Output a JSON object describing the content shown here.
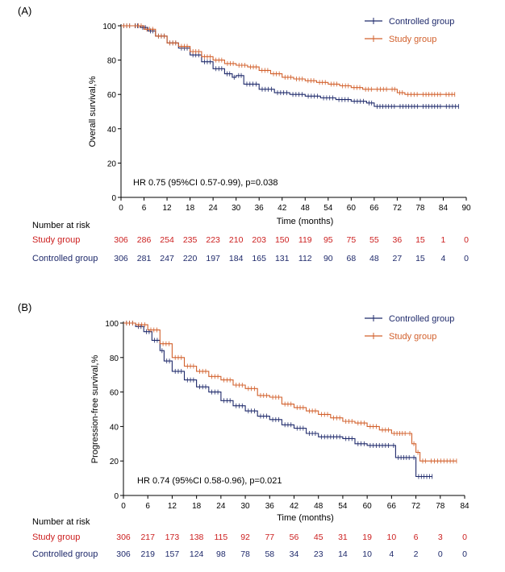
{
  "colors": {
    "controlled": "#1f2a6b",
    "study": "#d2602c",
    "axis": "#000000",
    "risk_controlled": "#1f2a6b",
    "risk_study": "#cc1f1f"
  },
  "chart_data": [
    {
      "type": "line",
      "panel_label": "(A)",
      "xlabel": "Time (months)",
      "ylabel": "Overall survival,%",
      "xlim": [
        0,
        90
      ],
      "ylim": [
        0,
        100
      ],
      "x_ticks": [
        0,
        6,
        12,
        18,
        24,
        30,
        36,
        42,
        48,
        54,
        60,
        66,
        72,
        78,
        84,
        90
      ],
      "y_ticks": [
        0,
        20,
        40,
        60,
        80,
        100
      ],
      "legend": {
        "position": "top-right",
        "entries": [
          "Controlled group",
          "Study group"
        ]
      },
      "annotation": "HR 0.75 (95%CI 0.57-0.99), p=0.038",
      "series": [
        {
          "name": "Controlled group",
          "color_key": "controlled",
          "points": [
            [
              0,
              100
            ],
            [
              3,
              100
            ],
            [
              5,
              99
            ],
            [
              7,
              97
            ],
            [
              9,
              94
            ],
            [
              12,
              90
            ],
            [
              15,
              87
            ],
            [
              18,
              83
            ],
            [
              21,
              79
            ],
            [
              24,
              75
            ],
            [
              27,
              72
            ],
            [
              29,
              70
            ],
            [
              30,
              71
            ],
            [
              32,
              66
            ],
            [
              36,
              63
            ],
            [
              40,
              61
            ],
            [
              44,
              60
            ],
            [
              48,
              59
            ],
            [
              52,
              58
            ],
            [
              56,
              57
            ],
            [
              60,
              56
            ],
            [
              64,
              55
            ],
            [
              66,
              53
            ],
            [
              72,
              53
            ],
            [
              78,
              53
            ],
            [
              84,
              53
            ],
            [
              88,
              53
            ]
          ]
        },
        {
          "name": "Study group",
          "color_key": "study",
          "points": [
            [
              0,
              100
            ],
            [
              3,
              100
            ],
            [
              6,
              98
            ],
            [
              9,
              94
            ],
            [
              12,
              90
            ],
            [
              15,
              88
            ],
            [
              18,
              85
            ],
            [
              21,
              82
            ],
            [
              24,
              80
            ],
            [
              27,
              78
            ],
            [
              30,
              77
            ],
            [
              33,
              76
            ],
            [
              36,
              74
            ],
            [
              39,
              72
            ],
            [
              42,
              70
            ],
            [
              45,
              69
            ],
            [
              48,
              68
            ],
            [
              51,
              67
            ],
            [
              54,
              66
            ],
            [
              57,
              65
            ],
            [
              60,
              64
            ],
            [
              63,
              63
            ],
            [
              66,
              63
            ],
            [
              70,
              63
            ],
            [
              72,
              61
            ],
            [
              74,
              60
            ],
            [
              78,
              60
            ],
            [
              84,
              60
            ],
            [
              87,
              60
            ]
          ]
        }
      ],
      "risk_table": {
        "title": "Number at risk",
        "rows": [
          {
            "label": "Study group",
            "color_key": "risk_study",
            "values": [
              "306",
              "286",
              "254",
              "235",
              "223",
              "210",
              "203",
              "150",
              "119",
              "95",
              "75",
              "55",
              "36",
              "15",
              "1",
              "0"
            ]
          },
          {
            "label": "Controlled group",
            "color_key": "risk_controlled",
            "values": [
              "306",
              "281",
              "247",
              "220",
              "197",
              "184",
              "165",
              "131",
              "112",
              "90",
              "68",
              "48",
              "27",
              "15",
              "4",
              "0"
            ]
          }
        ]
      }
    },
    {
      "type": "line",
      "panel_label": "(B)",
      "xlabel": "Time (months)",
      "ylabel": "Progression-free survival,%",
      "xlim": [
        0,
        84
      ],
      "ylim": [
        0,
        100
      ],
      "x_ticks": [
        0,
        6,
        12,
        18,
        24,
        30,
        36,
        42,
        48,
        54,
        60,
        66,
        72,
        78,
        84
      ],
      "y_ticks": [
        0,
        20,
        40,
        60,
        80,
        100
      ],
      "legend": {
        "position": "top-right",
        "entries": [
          "Controlled group",
          "Study group"
        ]
      },
      "annotation": "HR 0.74 (95%CI 0.58-0.96), p=0.021",
      "series": [
        {
          "name": "Controlled group",
          "color_key": "controlled",
          "points": [
            [
              0,
              100
            ],
            [
              3,
              98
            ],
            [
              5,
              95
            ],
            [
              7,
              90
            ],
            [
              9,
              84
            ],
            [
              10,
              78
            ],
            [
              12,
              72
            ],
            [
              15,
              67
            ],
            [
              18,
              63
            ],
            [
              21,
              60
            ],
            [
              24,
              55
            ],
            [
              27,
              52
            ],
            [
              30,
              49
            ],
            [
              33,
              46
            ],
            [
              36,
              44
            ],
            [
              39,
              41
            ],
            [
              42,
              39
            ],
            [
              45,
              36
            ],
            [
              48,
              34
            ],
            [
              54,
              33
            ],
            [
              57,
              30
            ],
            [
              60,
              29
            ],
            [
              66,
              29
            ],
            [
              67,
              22
            ],
            [
              71,
              22
            ],
            [
              72,
              11
            ],
            [
              76,
              11
            ]
          ]
        },
        {
          "name": "Study group",
          "color_key": "study",
          "points": [
            [
              0,
              100
            ],
            [
              3,
              99
            ],
            [
              6,
              96
            ],
            [
              9,
              88
            ],
            [
              12,
              80
            ],
            [
              15,
              75
            ],
            [
              18,
              72
            ],
            [
              21,
              69
            ],
            [
              24,
              67
            ],
            [
              27,
              64
            ],
            [
              30,
              62
            ],
            [
              33,
              58
            ],
            [
              36,
              57
            ],
            [
              39,
              53
            ],
            [
              42,
              51
            ],
            [
              45,
              49
            ],
            [
              48,
              47
            ],
            [
              51,
              45
            ],
            [
              54,
              43
            ],
            [
              57,
              42
            ],
            [
              60,
              40
            ],
            [
              63,
              38
            ],
            [
              66,
              36
            ],
            [
              70,
              36
            ],
            [
              71,
              30
            ],
            [
              72,
              25
            ],
            [
              73,
              20
            ],
            [
              75,
              20
            ],
            [
              82,
              20
            ]
          ]
        }
      ],
      "risk_table": {
        "title": "Number at risk",
        "rows": [
          {
            "label": "Study group",
            "color_key": "risk_study",
            "values": [
              "306",
              "217",
              "173",
              "138",
              "115",
              "92",
              "77",
              "56",
              "45",
              "31",
              "19",
              "10",
              "6",
              "3",
              "0"
            ]
          },
          {
            "label": "Controlled group",
            "color_key": "risk_controlled",
            "values": [
              "306",
              "219",
              "157",
              "124",
              "98",
              "78",
              "58",
              "34",
              "23",
              "14",
              "10",
              "4",
              "2",
              "0",
              "0"
            ]
          }
        ]
      }
    }
  ]
}
